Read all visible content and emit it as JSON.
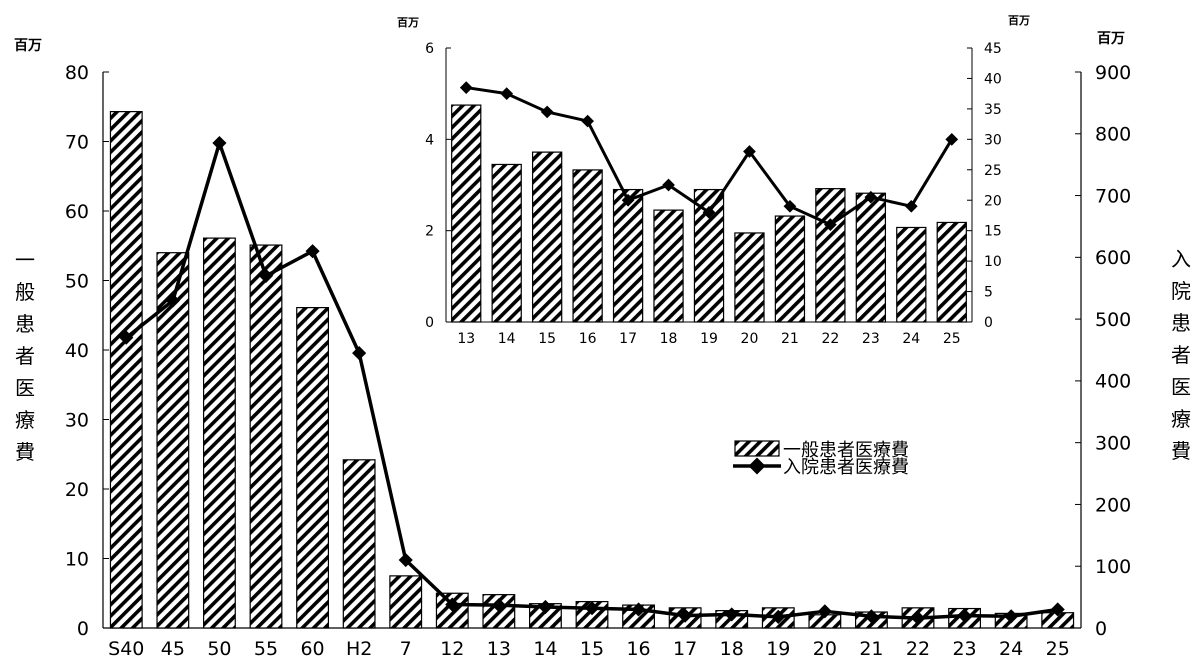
{
  "chart_data": [
    {
      "type": "bar+line",
      "categories": [
        "S40",
        "45",
        "50",
        "55",
        "60",
        "H2",
        "7",
        "12",
        "13",
        "14",
        "15",
        "16",
        "17",
        "18",
        "19",
        "20",
        "21",
        "22",
        "23",
        "24",
        "25"
      ],
      "series": [
        {
          "name": "一般患者医療費",
          "type": "bar",
          "axis": "left",
          "values": [
            74.3,
            54.0,
            56.1,
            55.1,
            46.1,
            24.2,
            7.5,
            5.0,
            4.8,
            3.5,
            3.8,
            3.3,
            2.9,
            2.5,
            2.9,
            1.9,
            2.3,
            2.9,
            2.8,
            2.1,
            2.2
          ]
        },
        {
          "name": "入院患者医療費",
          "type": "line",
          "axis": "right",
          "values": [
            470,
            530,
            785,
            570,
            610,
            445,
            110,
            38,
            37,
            34,
            32,
            30,
            20,
            22,
            18,
            27,
            19,
            16,
            20,
            19,
            30
          ]
        }
      ],
      "left_axis": {
        "unit": "百万",
        "label": "一般患者医療費",
        "ylim": [
          0,
          80
        ],
        "ticks": [
          0,
          10,
          20,
          30,
          40,
          50,
          60,
          70,
          80
        ]
      },
      "right_axis": {
        "unit": "百万",
        "label": "入院患者医療費",
        "ylim": [
          0,
          900
        ],
        "ticks": [
          0,
          100,
          200,
          300,
          400,
          500,
          600,
          700,
          800,
          900
        ]
      },
      "legend": {
        "position": "center-right",
        "items": [
          {
            "label": "一般患者医療費",
            "kind": "bar"
          },
          {
            "label": "入院患者医療費",
            "kind": "line"
          }
        ]
      },
      "grid": false
    },
    {
      "type": "bar+line",
      "categories": [
        "13",
        "14",
        "15",
        "16",
        "17",
        "18",
        "19",
        "20",
        "21",
        "22",
        "23",
        "24",
        "25"
      ],
      "series": [
        {
          "name": "一般患者医療費",
          "type": "bar",
          "axis": "left",
          "values": [
            4.75,
            3.45,
            3.72,
            3.33,
            2.9,
            2.45,
            2.9,
            1.95,
            2.32,
            2.92,
            2.82,
            2.07,
            2.18
          ]
        },
        {
          "name": "入院患者医療費",
          "type": "line",
          "axis": "right",
          "values": [
            38.5,
            37.5,
            34.5,
            33.0,
            20.0,
            22.5,
            18.0,
            28.0,
            19.0,
            16.0,
            20.5,
            19.0,
            30.0
          ]
        }
      ],
      "left_axis": {
        "unit": "百万",
        "ylim": [
          0,
          6
        ],
        "ticks": [
          0,
          2,
          4,
          6
        ]
      },
      "right_axis": {
        "unit": "百万",
        "ylim": [
          0,
          45
        ],
        "ticks": [
          0,
          5,
          10,
          15,
          20,
          25,
          30,
          35,
          40,
          45
        ]
      },
      "grid": false
    }
  ]
}
